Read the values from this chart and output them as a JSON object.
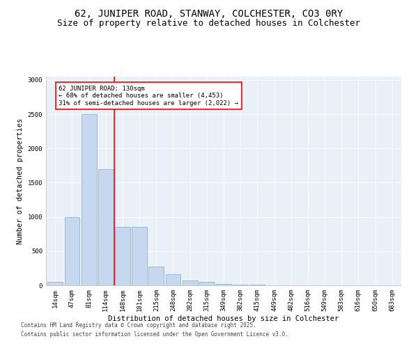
{
  "title_line1": "62, JUNIPER ROAD, STANWAY, COLCHESTER, CO3 0RY",
  "title_line2": "Size of property relative to detached houses in Colchester",
  "xlabel": "Distribution of detached houses by size in Colchester",
  "ylabel": "Number of detached properties",
  "categories": [
    "14sqm",
    "47sqm",
    "81sqm",
    "114sqm",
    "148sqm",
    "181sqm",
    "215sqm",
    "248sqm",
    "282sqm",
    "315sqm",
    "349sqm",
    "382sqm",
    "415sqm",
    "449sqm",
    "482sqm",
    "516sqm",
    "549sqm",
    "583sqm",
    "616sqm",
    "650sqm",
    "683sqm"
  ],
  "values": [
    55,
    1000,
    2500,
    1700,
    850,
    850,
    270,
    160,
    70,
    50,
    25,
    15,
    8,
    5,
    3,
    2,
    1,
    0,
    0,
    0,
    0
  ],
  "bar_color": "#c5d8ef",
  "bar_edgecolor": "#7aadd4",
  "vline_x": 3.5,
  "vline_color": "red",
  "annotation_text": "62 JUNIPER ROAD: 130sqm\n← 68% of detached houses are smaller (4,453)\n31% of semi-detached houses are larger (2,022) →",
  "annotation_box_color": "white",
  "annotation_box_edgecolor": "red",
  "ylim": [
    0,
    3050
  ],
  "yticks": [
    0,
    500,
    1000,
    1500,
    2000,
    2500,
    3000
  ],
  "footnote1": "Contains HM Land Registry data © Crown copyright and database right 2025.",
  "footnote2": "Contains public sector information licensed under the Open Government Licence v3.0.",
  "bg_color": "#eaf0f8",
  "title_fontsize": 10,
  "subtitle_fontsize": 9,
  "tick_fontsize": 6.5,
  "label_fontsize": 7.5,
  "footnote_fontsize": 5.5
}
